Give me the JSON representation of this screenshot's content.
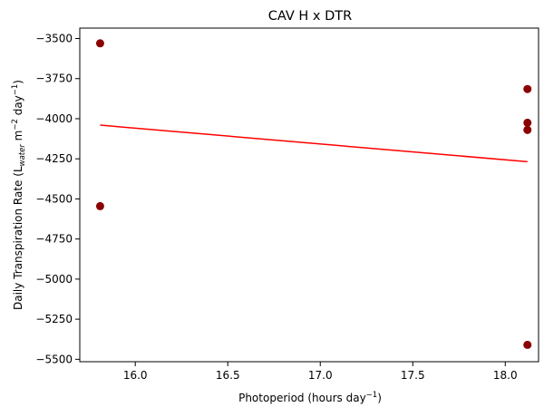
{
  "chart_data": {
    "type": "scatter",
    "title": "CAV H x DTR",
    "xlabel": {
      "text": "Photoperiod (hours day",
      "sup": "−1",
      "close": ")"
    },
    "ylabel": {
      "p1": "Daily Transpiration Rate (L",
      "sub": "water",
      "p2": " m",
      "sup1": "−2",
      "p3": " day",
      "sup2": "−1",
      "p4": ")"
    },
    "xlim": [
      15.7,
      18.18
    ],
    "ylim": [
      -5515,
      -3435
    ],
    "xticks": [
      16.0,
      16.5,
      17.0,
      17.5,
      18.0
    ],
    "xtick_labels": [
      "16.0",
      "16.5",
      "17.0",
      "17.5",
      "18.0"
    ],
    "yticks": [
      -3500,
      -3750,
      -4000,
      -4250,
      -4500,
      -4750,
      -5000,
      -5250,
      -5500
    ],
    "ytick_labels": [
      "−3500",
      "−3750",
      "−4000",
      "−4250",
      "−4500",
      "−4750",
      "−5000",
      "−5250",
      "−5500"
    ],
    "points": [
      {
        "x": 15.81,
        "y": -3530
      },
      {
        "x": 15.81,
        "y": -4545
      },
      {
        "x": 18.12,
        "y": -3815
      },
      {
        "x": 18.12,
        "y": -4025
      },
      {
        "x": 18.12,
        "y": -4070
      },
      {
        "x": 18.12,
        "y": -5410
      }
    ],
    "fit_line": [
      {
        "x": 15.81,
        "y": -4040
      },
      {
        "x": 18.12,
        "y": -4268
      }
    ],
    "marker_color": "#8b0000",
    "line_color": "#ff0000",
    "grid": false,
    "legend": false
  }
}
